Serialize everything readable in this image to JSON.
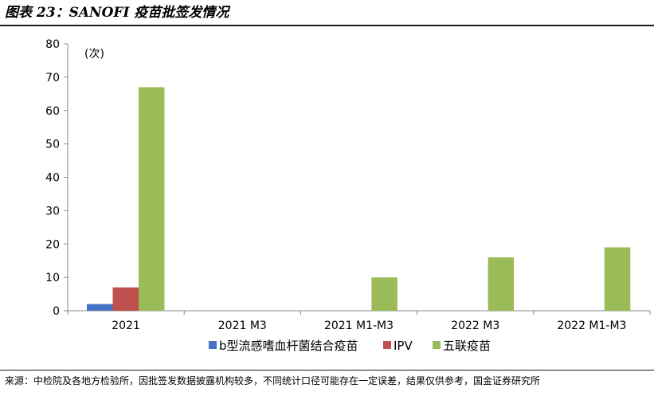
{
  "header": {
    "title": "图表 23：SANOFI 疫苗批签发情况"
  },
  "footer": {
    "source": "来源：中检院及各地方检验所，因批签发数据披露机构较多，不同统计口径可能存在一定误差，结果仅供参考，国金证券研究所"
  },
  "chart_data": {
    "type": "bar",
    "unit_label": "(次)",
    "categories": [
      "2021",
      "2021 M3",
      "2021 M1-M3",
      "2022 M3",
      "2022 M1-M3"
    ],
    "series": [
      {
        "name": "b型流感嗜血杆菌结合疫苗",
        "color": "#4472C4",
        "values": [
          2,
          0,
          0,
          0,
          0
        ]
      },
      {
        "name": "IPV",
        "color": "#C0504D",
        "values": [
          7,
          0,
          0,
          0,
          0
        ]
      },
      {
        "name": "五联疫苗",
        "color": "#9BBB59",
        "values": [
          67,
          0,
          10,
          16,
          19
        ]
      }
    ],
    "ylim": [
      0,
      80
    ],
    "yticks": [
      0,
      10,
      20,
      30,
      40,
      50,
      60,
      70,
      80
    ],
    "grid": false,
    "legend_position": "bottom"
  }
}
